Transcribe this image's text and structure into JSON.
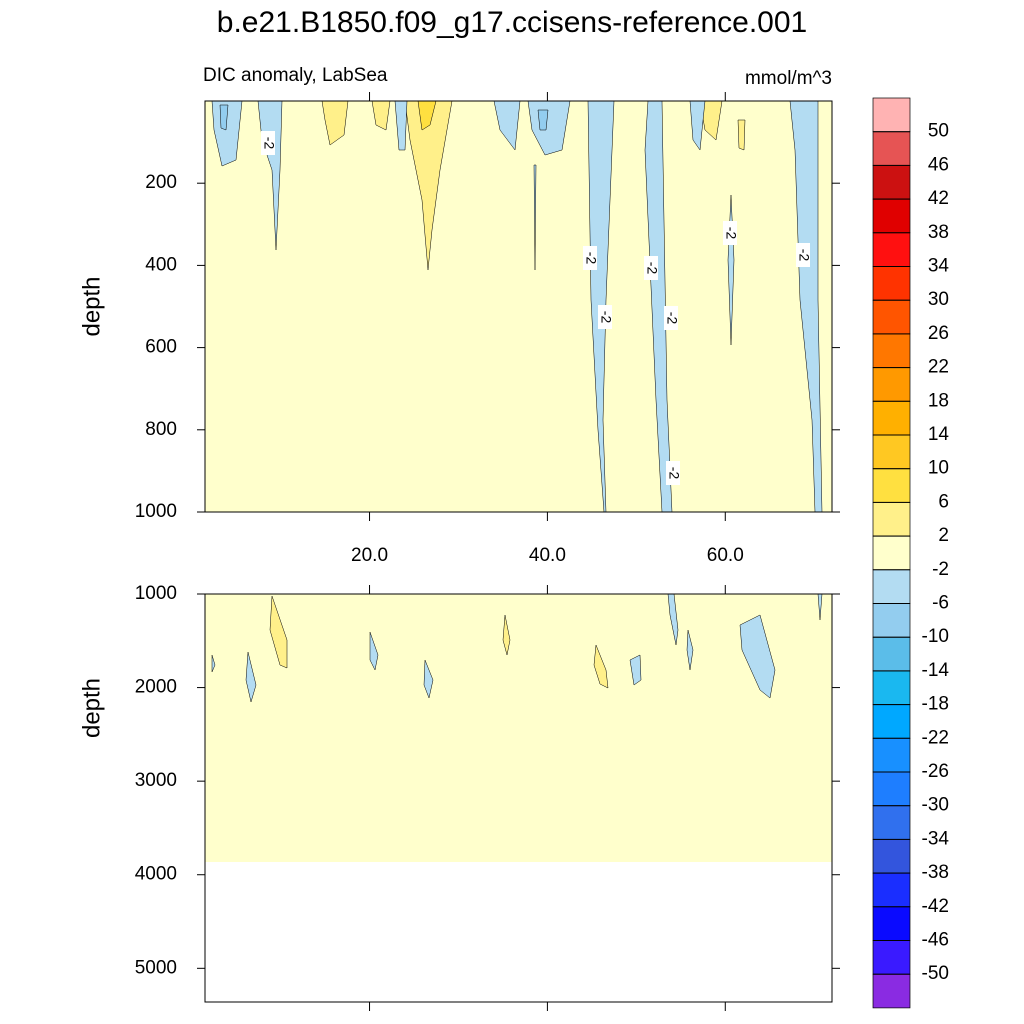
{
  "chart_data": {
    "type": "contour",
    "title": "b.e21.B1850.f09_g17.ccisens-reference.001",
    "subtitle": "DIC anomaly, LabSea",
    "units": "mmol/m^3",
    "panels": [
      {
        "ylabel": "depth",
        "xlim": [
          1.5,
          72
        ],
        "xticks": [
          {
            "value": 20,
            "label": "20.0"
          },
          {
            "value": 40,
            "label": "40.0"
          },
          {
            "value": 60,
            "label": "60.0"
          }
        ],
        "ylim": [
          0,
          1000
        ],
        "yticks": [
          200,
          400,
          600,
          800,
          1000
        ],
        "contour_labels": [
          "-2",
          "-2",
          "-2",
          "-2",
          "-2",
          "-2",
          "-2",
          "-2"
        ]
      },
      {
        "ylabel": "depth",
        "xlim": [
          1.5,
          72
        ],
        "xticks": [
          20,
          40,
          60
        ],
        "xtick_labels": false,
        "ylim": [
          1000,
          5360
        ],
        "yticks": [
          1000,
          2000,
          3000,
          4000,
          5000
        ]
      }
    ],
    "colorbar": {
      "levels": [
        50,
        46,
        42,
        38,
        34,
        30,
        26,
        22,
        18,
        14,
        10,
        6,
        2,
        -2,
        -6,
        -10,
        -14,
        -18,
        -22,
        -26,
        -30,
        -34,
        -38,
        -42,
        -46,
        -50
      ],
      "colors": [
        "#ffb3b3",
        "#e65454",
        "#cc1111",
        "#e00000",
        "#ff1010",
        "#ff3300",
        "#ff5500",
        "#ff7700",
        "#ff9900",
        "#ffb000",
        "#ffc822",
        "#ffe040",
        "#fff08a",
        "#ffffcc",
        "#b3dcf2",
        "#93cdef",
        "#5bbde9",
        "#1ab8f0",
        "#00a8ff",
        "#1890ff",
        "#1e7eff",
        "#3070ee",
        "#3355dd",
        "#1a2eff",
        "#0a0aff",
        "#3a1aff",
        "#8a2be2"
      ]
    }
  }
}
